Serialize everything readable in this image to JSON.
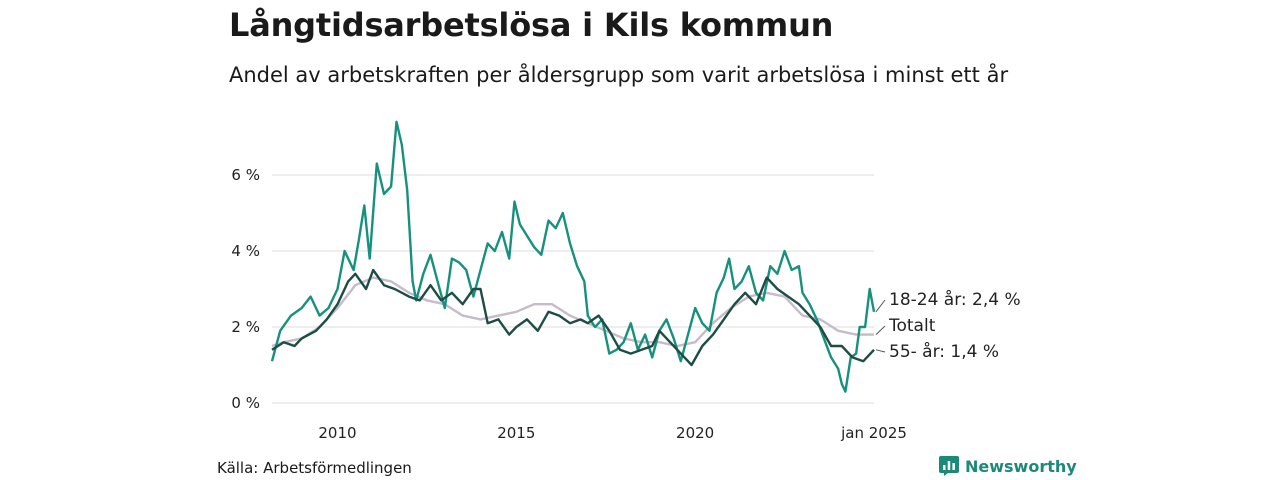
{
  "header": {
    "title": "Långtidsarbetslösa i Kils kommun",
    "subtitle": "Andel av arbetskraften per åldersgrupp som varit arbetslösa i minst ett år"
  },
  "footer": {
    "source": "Källa: Arbetsförmedlingen",
    "brand": "Newsworthy"
  },
  "chart_data": {
    "type": "line",
    "title": "Långtidsarbetslösa i Kils kommun",
    "subtitle": "Andel av arbetskraften per åldersgrupp som varit arbetslösa i minst ett år",
    "ylim": [
      0,
      7.5
    ],
    "y_ticks": [
      0,
      2,
      4,
      6
    ],
    "y_tick_labels": [
      "0 %",
      "2 %",
      "4 %",
      "6 %"
    ],
    "x_range": [
      2008.17,
      2025.0
    ],
    "x_ticks": [
      2010,
      2015,
      2020,
      2025
    ],
    "x_tick_labels": [
      "2010",
      "2015",
      "2020",
      "jan 2025"
    ],
    "grid": true,
    "legend": "direct labels at line ends (right)",
    "series": [
      {
        "name": "Totalt",
        "label": "Totalt",
        "color": "#c4bccb",
        "points": [
          [
            2008.17,
            1.5
          ],
          [
            2008.5,
            1.6
          ],
          [
            2009.0,
            1.7
          ],
          [
            2009.5,
            2.0
          ],
          [
            2010.0,
            2.5
          ],
          [
            2010.5,
            3.1
          ],
          [
            2011.0,
            3.3
          ],
          [
            2011.5,
            3.2
          ],
          [
            2012.0,
            2.9
          ],
          [
            2012.5,
            2.7
          ],
          [
            2013.0,
            2.6
          ],
          [
            2013.5,
            2.3
          ],
          [
            2014.0,
            2.2
          ],
          [
            2014.5,
            2.3
          ],
          [
            2015.0,
            2.4
          ],
          [
            2015.5,
            2.6
          ],
          [
            2016.0,
            2.6
          ],
          [
            2016.5,
            2.3
          ],
          [
            2017.0,
            2.1
          ],
          [
            2017.5,
            1.9
          ],
          [
            2018.0,
            1.7
          ],
          [
            2018.5,
            1.6
          ],
          [
            2019.0,
            1.6
          ],
          [
            2019.5,
            1.5
          ],
          [
            2020.0,
            1.6
          ],
          [
            2020.5,
            2.1
          ],
          [
            2021.0,
            2.5
          ],
          [
            2021.5,
            2.8
          ],
          [
            2022.0,
            2.9
          ],
          [
            2022.5,
            2.8
          ],
          [
            2023.0,
            2.3
          ],
          [
            2023.5,
            2.2
          ],
          [
            2024.0,
            1.9
          ],
          [
            2024.5,
            1.8
          ],
          [
            2025.0,
            1.8
          ]
        ]
      },
      {
        "name": "18-24 år",
        "label": "18-24 år: 2,4 %",
        "color": "#17917d",
        "points": [
          [
            2008.17,
            1.1
          ],
          [
            2008.4,
            1.9
          ],
          [
            2008.7,
            2.3
          ],
          [
            2009.0,
            2.5
          ],
          [
            2009.25,
            2.8
          ],
          [
            2009.5,
            2.3
          ],
          [
            2009.75,
            2.5
          ],
          [
            2010.0,
            3.0
          ],
          [
            2010.2,
            4.0
          ],
          [
            2010.45,
            3.5
          ],
          [
            2010.6,
            4.3
          ],
          [
            2010.75,
            5.2
          ],
          [
            2010.9,
            3.8
          ],
          [
            2011.1,
            6.3
          ],
          [
            2011.3,
            5.5
          ],
          [
            2011.5,
            5.7
          ],
          [
            2011.65,
            7.4
          ],
          [
            2011.8,
            6.8
          ],
          [
            2011.95,
            5.6
          ],
          [
            2012.1,
            3.2
          ],
          [
            2012.2,
            2.7
          ],
          [
            2012.4,
            3.4
          ],
          [
            2012.6,
            3.9
          ],
          [
            2012.8,
            3.2
          ],
          [
            2013.0,
            2.5
          ],
          [
            2013.2,
            3.8
          ],
          [
            2013.4,
            3.7
          ],
          [
            2013.6,
            3.5
          ],
          [
            2013.8,
            2.8
          ],
          [
            2014.0,
            3.5
          ],
          [
            2014.2,
            4.2
          ],
          [
            2014.4,
            4.0
          ],
          [
            2014.6,
            4.5
          ],
          [
            2014.8,
            3.8
          ],
          [
            2014.95,
            5.3
          ],
          [
            2015.1,
            4.7
          ],
          [
            2015.3,
            4.4
          ],
          [
            2015.5,
            4.1
          ],
          [
            2015.7,
            3.9
          ],
          [
            2015.9,
            4.8
          ],
          [
            2016.1,
            4.6
          ],
          [
            2016.3,
            5.0
          ],
          [
            2016.5,
            4.2
          ],
          [
            2016.7,
            3.6
          ],
          [
            2016.9,
            3.2
          ],
          [
            2017.0,
            2.3
          ],
          [
            2017.2,
            2.0
          ],
          [
            2017.4,
            2.2
          ],
          [
            2017.6,
            1.3
          ],
          [
            2017.8,
            1.4
          ],
          [
            2018.0,
            1.6
          ],
          [
            2018.2,
            2.1
          ],
          [
            2018.4,
            1.4
          ],
          [
            2018.6,
            1.8
          ],
          [
            2018.8,
            1.2
          ],
          [
            2019.0,
            1.9
          ],
          [
            2019.2,
            2.2
          ],
          [
            2019.4,
            1.7
          ],
          [
            2019.6,
            1.1
          ],
          [
            2019.8,
            1.8
          ],
          [
            2020.0,
            2.5
          ],
          [
            2020.2,
            2.1
          ],
          [
            2020.4,
            1.9
          ],
          [
            2020.6,
            2.9
          ],
          [
            2020.8,
            3.3
          ],
          [
            2020.95,
            3.8
          ],
          [
            2021.1,
            3.0
          ],
          [
            2021.3,
            3.2
          ],
          [
            2021.5,
            3.6
          ],
          [
            2021.7,
            2.9
          ],
          [
            2021.9,
            2.7
          ],
          [
            2022.1,
            3.6
          ],
          [
            2022.3,
            3.4
          ],
          [
            2022.5,
            4.0
          ],
          [
            2022.7,
            3.5
          ],
          [
            2022.9,
            3.6
          ],
          [
            2023.0,
            2.9
          ],
          [
            2023.2,
            2.6
          ],
          [
            2023.4,
            2.2
          ],
          [
            2023.6,
            1.7
          ],
          [
            2023.8,
            1.2
          ],
          [
            2024.0,
            0.9
          ],
          [
            2024.1,
            0.5
          ],
          [
            2024.2,
            0.3
          ],
          [
            2024.35,
            1.2
          ],
          [
            2024.5,
            1.3
          ],
          [
            2024.6,
            2.0
          ],
          [
            2024.75,
            2.0
          ],
          [
            2024.88,
            3.0
          ],
          [
            2025.0,
            2.4
          ]
        ]
      },
      {
        "name": "55- år",
        "label": "55- år: 1,4 %",
        "color": "#1d4d44",
        "points": [
          [
            2008.17,
            1.4
          ],
          [
            2008.5,
            1.6
          ],
          [
            2008.8,
            1.5
          ],
          [
            2009.0,
            1.7
          ],
          [
            2009.4,
            1.9
          ],
          [
            2009.7,
            2.2
          ],
          [
            2010.0,
            2.6
          ],
          [
            2010.3,
            3.2
          ],
          [
            2010.5,
            3.4
          ],
          [
            2010.8,
            3.0
          ],
          [
            2011.0,
            3.5
          ],
          [
            2011.3,
            3.1
          ],
          [
            2011.6,
            3.0
          ],
          [
            2012.0,
            2.8
          ],
          [
            2012.3,
            2.7
          ],
          [
            2012.6,
            3.1
          ],
          [
            2012.9,
            2.7
          ],
          [
            2013.2,
            2.9
          ],
          [
            2013.5,
            2.6
          ],
          [
            2013.8,
            3.0
          ],
          [
            2014.0,
            3.0
          ],
          [
            2014.2,
            2.1
          ],
          [
            2014.5,
            2.2
          ],
          [
            2014.8,
            1.8
          ],
          [
            2015.0,
            2.0
          ],
          [
            2015.3,
            2.2
          ],
          [
            2015.6,
            1.9
          ],
          [
            2015.9,
            2.4
          ],
          [
            2016.2,
            2.3
          ],
          [
            2016.5,
            2.1
          ],
          [
            2016.8,
            2.2
          ],
          [
            2017.0,
            2.1
          ],
          [
            2017.3,
            2.3
          ],
          [
            2017.6,
            1.9
          ],
          [
            2017.9,
            1.4
          ],
          [
            2018.2,
            1.3
          ],
          [
            2018.5,
            1.4
          ],
          [
            2018.8,
            1.5
          ],
          [
            2019.0,
            1.9
          ],
          [
            2019.3,
            1.6
          ],
          [
            2019.6,
            1.3
          ],
          [
            2019.9,
            1.0
          ],
          [
            2020.2,
            1.5
          ],
          [
            2020.5,
            1.8
          ],
          [
            2020.8,
            2.2
          ],
          [
            2021.1,
            2.6
          ],
          [
            2021.4,
            2.9
          ],
          [
            2021.7,
            2.6
          ],
          [
            2022.0,
            3.3
          ],
          [
            2022.3,
            3.0
          ],
          [
            2022.6,
            2.8
          ],
          [
            2022.9,
            2.6
          ],
          [
            2023.2,
            2.3
          ],
          [
            2023.5,
            2.0
          ],
          [
            2023.8,
            1.5
          ],
          [
            2024.1,
            1.5
          ],
          [
            2024.4,
            1.2
          ],
          [
            2024.7,
            1.1
          ],
          [
            2025.0,
            1.4
          ]
        ]
      }
    ]
  }
}
